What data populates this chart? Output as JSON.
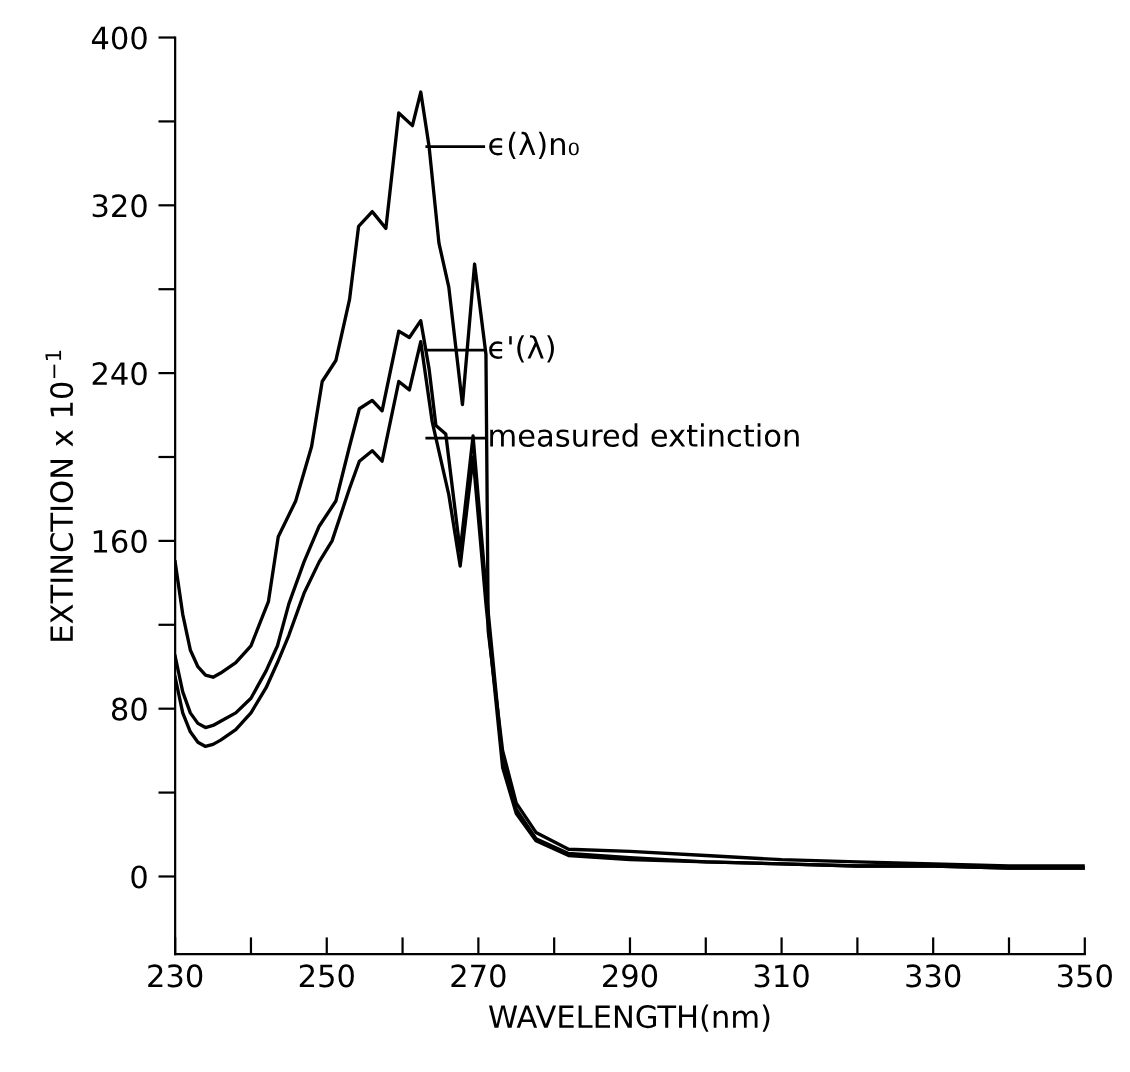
{
  "chart_data": {
    "type": "line",
    "xlabel": "WAVELENGTH(nm)",
    "ylabel": "EXTINCTION x 10$^{−1}$",
    "xlim": [
      230,
      350
    ],
    "ylim": [
      -37,
      400
    ],
    "xticks": [
      230,
      {
        "value": 240,
        "label": null
      },
      250,
      {
        "value": 260,
        "label": null
      },
      270,
      {
        "value": 280,
        "label": null
      },
      290,
      {
        "value": 300,
        "label": null
      },
      310,
      {
        "value": 320,
        "label": null
      },
      330,
      {
        "value": 340,
        "label": null
      },
      350
    ],
    "yticks": [
      0,
      {
        "value": 40,
        "label": null
      },
      80,
      {
        "value": 120,
        "label": null
      },
      160,
      {
        "value": 200,
        "label": null
      },
      240,
      {
        "value": 280,
        "label": null
      },
      320,
      {
        "value": 360,
        "label": null
      },
      400
    ],
    "grid": false,
    "legend": "top right",
    "marker": "none",
    "line_style": "solid",
    "series": [
      {
        "name": "ϵ(λ)n₀",
        "color": "#000000",
        "x": [
          230,
          231,
          232,
          233,
          234,
          235,
          236,
          238,
          240,
          242.3,
          243.6,
          245.9,
          248,
          249.4,
          251.2,
          253,
          254.2,
          256,
          257.8,
          259.5,
          261.3,
          262.4,
          263.5,
          264.8,
          266.1,
          267.9,
          269.5,
          271,
          271.3,
          273.2,
          275,
          277.6,
          281.9,
          290,
          300,
          310,
          320,
          330,
          340,
          350
        ],
        "values": [
          150,
          125,
          108,
          100,
          96,
          95,
          97,
          102,
          110,
          131,
          162,
          179,
          205,
          236,
          246,
          275,
          310,
          317,
          309,
          364,
          358,
          374,
          348,
          302,
          281,
          225,
          292,
          249,
          117,
          60,
          35,
          21,
          13,
          12,
          10,
          8,
          7,
          6,
          5,
          5
        ]
      },
      {
        "name": "ϵ'(λ)",
        "color": "#000000",
        "x": [
          230,
          231,
          232,
          233,
          234,
          235,
          236,
          238,
          240,
          242,
          243.5,
          245,
          247,
          249,
          251.2,
          253,
          254.3,
          256,
          257.3,
          259.5,
          260.9,
          262.4,
          263.5,
          264.4,
          265.7,
          267.6,
          269.3,
          271,
          272,
          273.2,
          275,
          277.6,
          281.9,
          290,
          300,
          310,
          320,
          330,
          340,
          350
        ],
        "values": [
          105,
          88,
          78,
          73,
          71,
          72,
          74,
          78,
          85,
          98,
          110,
          130,
          150,
          167,
          179,
          205,
          223,
          227,
          222,
          260,
          257,
          265,
          242,
          215,
          211,
          155,
          210,
          137,
          100,
          55,
          32,
          18,
          11,
          9,
          7,
          6,
          5,
          5,
          4,
          4
        ]
      },
      {
        "name": "measured extinction",
        "color": "#000000",
        "x": [
          230,
          231,
          232,
          233,
          234,
          235,
          236,
          238,
          240,
          242,
          243.5,
          245,
          247,
          249,
          250.7,
          253,
          254.3,
          256,
          257.3,
          259.5,
          260.9,
          262.4,
          263.9,
          266.1,
          267.6,
          269.3,
          271,
          272,
          273.2,
          275,
          277.6,
          281.9,
          290,
          300,
          310,
          320,
          330,
          340,
          350
        ],
        "values": [
          95,
          78,
          69,
          64,
          62,
          63,
          65,
          70,
          78,
          90,
          102,
          115,
          135,
          150,
          160,
          185,
          198,
          203,
          198,
          236,
          232,
          255,
          217,
          182,
          148,
          200,
          130,
          95,
          52,
          30,
          17,
          10,
          8,
          7,
          6,
          5,
          5,
          4,
          4
        ]
      }
    ]
  }
}
